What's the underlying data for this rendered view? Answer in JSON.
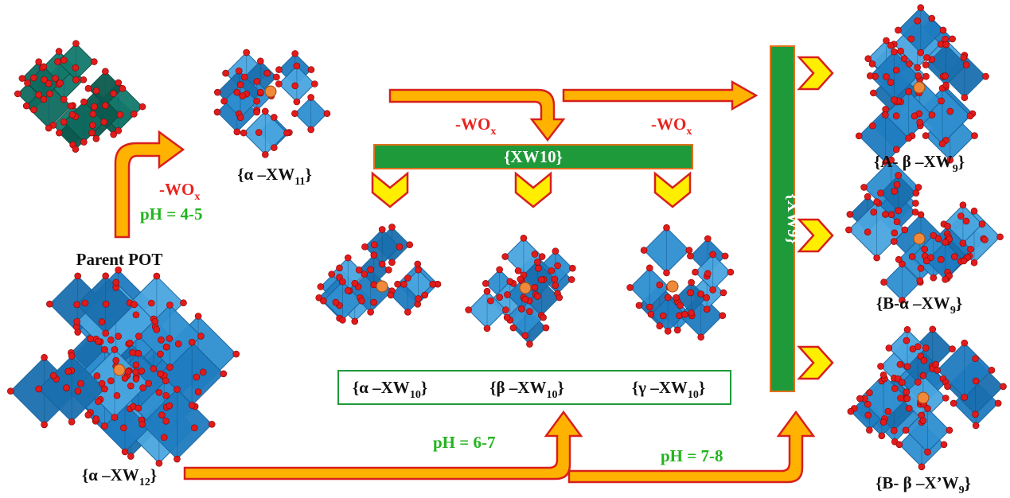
{
  "process_labels": [
    {
      "pre": "-WO",
      "sub": "x"
    },
    {
      "pre": "-WO",
      "sub": "x"
    },
    {
      "pre": "-WO",
      "sub": "x"
    }
  ],
  "ph_labels": [
    "pH = 4-5",
    "pH = 6-7",
    "pH = 7-8"
  ],
  "parent_title": "Parent POT",
  "bars": {
    "horizontal": "{XW10}",
    "vertical": "{XW9}"
  },
  "structures": {
    "parent": {
      "pre": "{α –XW",
      "sub": "12",
      "post": "}"
    },
    "lacunary_11": {
      "pre": "{α –XW",
      "sub": "11",
      "post": "}"
    },
    "lacunary_10": [
      {
        "pre": "{α –XW",
        "sub": "10",
        "post": "}"
      },
      {
        "pre": "{β –XW",
        "sub": "10",
        "post": "}"
      },
      {
        "pre": "{γ –XW",
        "sub": "10",
        "post": "}"
      }
    ],
    "trilacunary_9": [
      {
        "pre": "{A- β –XW",
        "sub": "9",
        "post": "}"
      },
      {
        "pre": "{B-α –XW",
        "sub": "9",
        "post": "}"
      },
      {
        "pre": "{B- β –X’W",
        "sub": "9",
        "post": "}"
      }
    ]
  }
}
